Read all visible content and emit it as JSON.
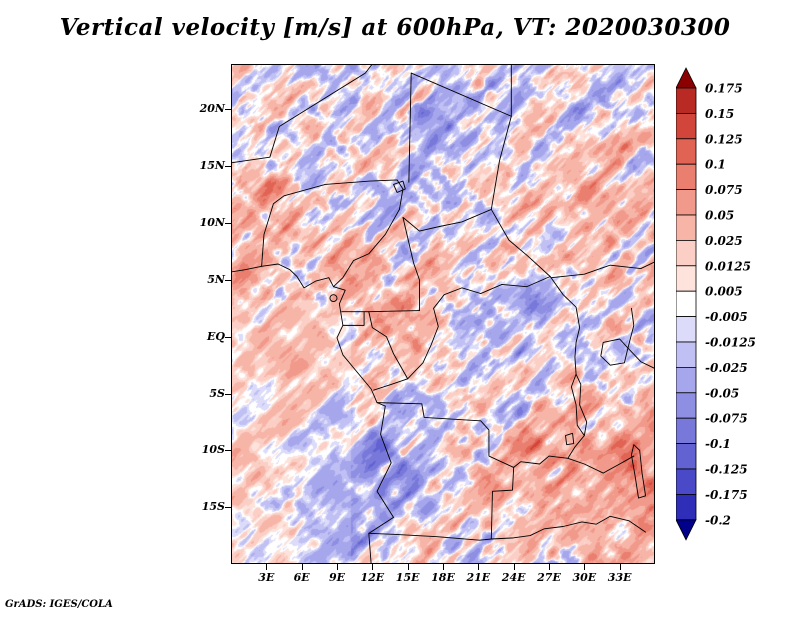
{
  "title": "Vertical velocity [m/s] at 600hPa, VT: 2020030300",
  "credit": "GrADS: IGES/COLA",
  "chart_data": {
    "type": "heatmap",
    "title": "Vertical velocity [m/s] at 600hPa, VT: 2020030300",
    "variable": "Vertical velocity",
    "units": "m/s",
    "level": "600hPa",
    "valid_time": "2020030300",
    "x_axis": {
      "labels": [
        "3E",
        "6E",
        "9E",
        "12E",
        "15E",
        "18E",
        "21E",
        "24E",
        "27E",
        "30E",
        "33E"
      ],
      "values": [
        3,
        6,
        9,
        12,
        15,
        18,
        21,
        24,
        27,
        30,
        33
      ],
      "lon_range": [
        0,
        36
      ]
    },
    "y_axis": {
      "labels": [
        "20N",
        "15N",
        "10N",
        "5N",
        "EQ",
        "5S",
        "10S",
        "15S"
      ],
      "values": [
        20,
        15,
        10,
        5,
        0,
        -5,
        -10,
        -15
      ],
      "lat_range": [
        -20,
        24
      ]
    },
    "colorbar": {
      "labels_top_to_bottom": [
        "0.175",
        "0.15",
        "0.125",
        "0.1",
        "0.075",
        "0.05",
        "0.025",
        "0.0125",
        "0.005",
        "-0.005",
        "-0.0125",
        "-0.025",
        "-0.05",
        "-0.075",
        "-0.1",
        "-0.125",
        "-0.175",
        "-0.2"
      ],
      "levels_ascending": [
        -0.2,
        -0.175,
        -0.125,
        -0.1,
        -0.075,
        -0.05,
        -0.025,
        -0.0125,
        -0.005,
        0.005,
        0.0125,
        0.025,
        0.05,
        0.075,
        0.1,
        0.125,
        0.15,
        0.175
      ],
      "colors_low_to_high": [
        "#00008b",
        "#2e2eb8",
        "#4a4ac8",
        "#6262d2",
        "#7878da",
        "#8e8ee2",
        "#a6a6ec",
        "#c0c0f4",
        "#dcdcfa",
        "#ffffff",
        "#fde3dc",
        "#fbcfc5",
        "#f7b5a8",
        "#f19a8b",
        "#ea7f6f",
        "#e16353",
        "#d2453a",
        "#ba2a24",
        "#8b0000"
      ]
    },
    "field_description": "Noisy red/blue vertical-velocity field over central Africa with diagonal streaks; reds = upward, blues = downward"
  }
}
